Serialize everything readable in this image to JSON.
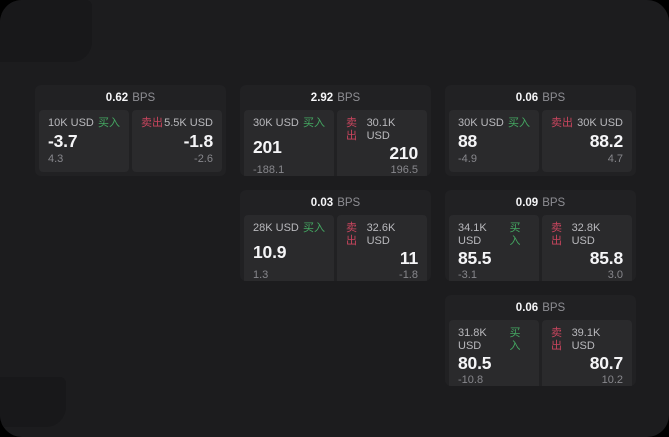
{
  "app": {
    "bps_unit": "BPS",
    "buy_label": "买入",
    "sell_label": "卖出"
  },
  "colors": {
    "page": "#000000",
    "surface": "#1c1c1e",
    "shade": "#18181a",
    "card": "#212123",
    "panel": "#2a2a2c",
    "value_white": "#f5f5f7",
    "label": "#b9b9bd",
    "dim": "#87878c",
    "unit": "#8e8e93",
    "buy_green": "#44a862",
    "sell_red": "#c9455e"
  },
  "cards": [
    {
      "bps": "0.62",
      "grid": {
        "row": 1,
        "col": 1
      },
      "buy": {
        "notional": "10K USD",
        "price": "-3.7",
        "delta": "4.3"
      },
      "sell": {
        "notional": "5.5K USD",
        "price": "-1.8",
        "delta": "-2.6"
      }
    },
    {
      "bps": "2.92",
      "grid": {
        "row": 1,
        "col": 2
      },
      "buy": {
        "notional": "30K USD",
        "price": "201",
        "delta": "-188.1"
      },
      "sell": {
        "notional": "30.1K USD",
        "price": "210",
        "delta": "196.5"
      }
    },
    {
      "bps": "0.06",
      "grid": {
        "row": 1,
        "col": 3
      },
      "buy": {
        "notional": "30K USD",
        "price": "88",
        "delta": "-4.9"
      },
      "sell": {
        "notional": "30K USD",
        "price": "88.2",
        "delta": "4.7"
      }
    },
    {
      "bps": "0.03",
      "grid": {
        "row": 2,
        "col": 2
      },
      "buy": {
        "notional": "28K USD",
        "price": "10.9",
        "delta": "1.3"
      },
      "sell": {
        "notional": "32.6K USD",
        "price": "11",
        "delta": "-1.8"
      }
    },
    {
      "bps": "0.09",
      "grid": {
        "row": 2,
        "col": 3
      },
      "buy": {
        "notional": "34.1K USD",
        "price": "85.5",
        "delta": "-3.1"
      },
      "sell": {
        "notional": "32.8K USD",
        "price": "85.8",
        "delta": "3.0"
      }
    },
    {
      "bps": "0.06",
      "grid": {
        "row": 3,
        "col": 3
      },
      "buy": {
        "notional": "31.8K USD",
        "price": "80.5",
        "delta": "-10.8"
      },
      "sell": {
        "notional": "39.1K USD",
        "price": "80.7",
        "delta": "10.2"
      }
    }
  ]
}
